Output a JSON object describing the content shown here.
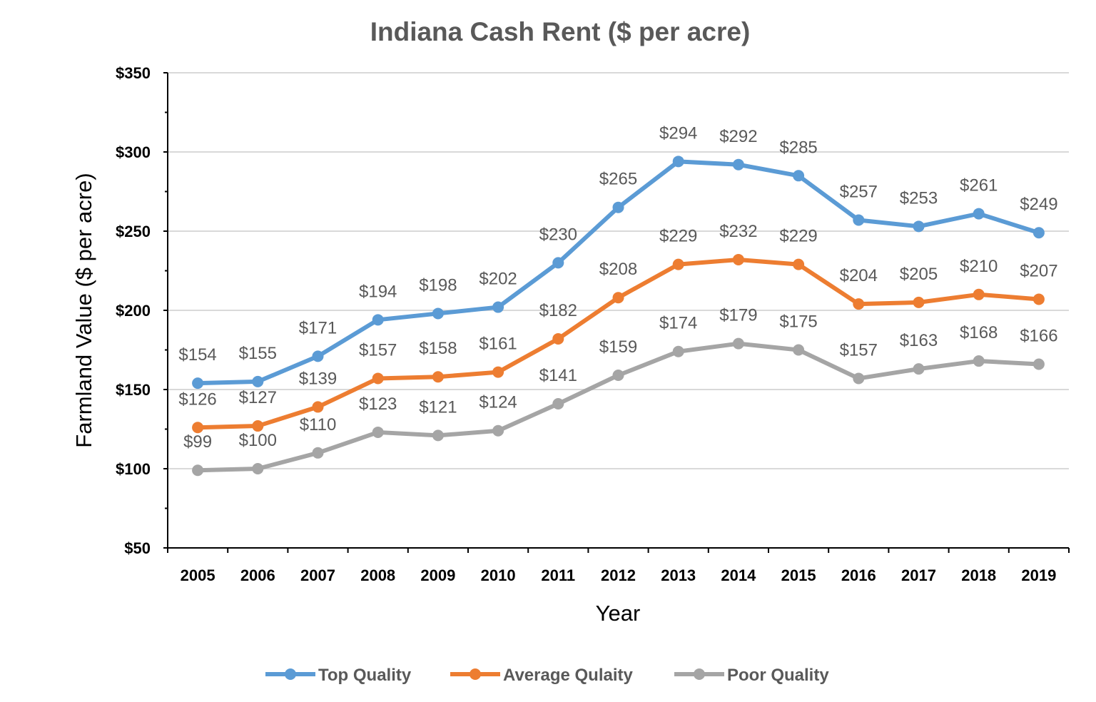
{
  "chart_data": {
    "type": "line",
    "title": "Indiana Cash Rent ($ per acre)",
    "xlabel": "Year",
    "ylabel": "Farmland Value ($ per acre)",
    "ylim": [
      50,
      350
    ],
    "y_major_step": 50,
    "y_tick_labels": [
      "$50",
      "$100",
      "$150",
      "$200",
      "$250",
      "$300",
      "$350"
    ],
    "grid": true,
    "legend_position": "bottom",
    "categories": [
      "2005",
      "2006",
      "2007",
      "2008",
      "2009",
      "2010",
      "2011",
      "2012",
      "2013",
      "2014",
      "2015",
      "2016",
      "2017",
      "2018",
      "2019"
    ],
    "series": [
      {
        "name": "Top Quality",
        "color": "#5B9BD5",
        "values": [
          154,
          155,
          171,
          194,
          198,
          202,
          230,
          265,
          294,
          292,
          285,
          257,
          253,
          261,
          249
        ]
      },
      {
        "name": "Average Qulaity",
        "color": "#ED7D31",
        "values": [
          126,
          127,
          139,
          157,
          158,
          161,
          182,
          208,
          229,
          232,
          229,
          204,
          205,
          210,
          207
        ]
      },
      {
        "name": "Poor Quality",
        "color": "#A5A5A5",
        "values": [
          99,
          100,
          110,
          123,
          121,
          124,
          141,
          159,
          174,
          179,
          175,
          157,
          163,
          168,
          166
        ]
      }
    ],
    "data_label_prefix": "$"
  }
}
